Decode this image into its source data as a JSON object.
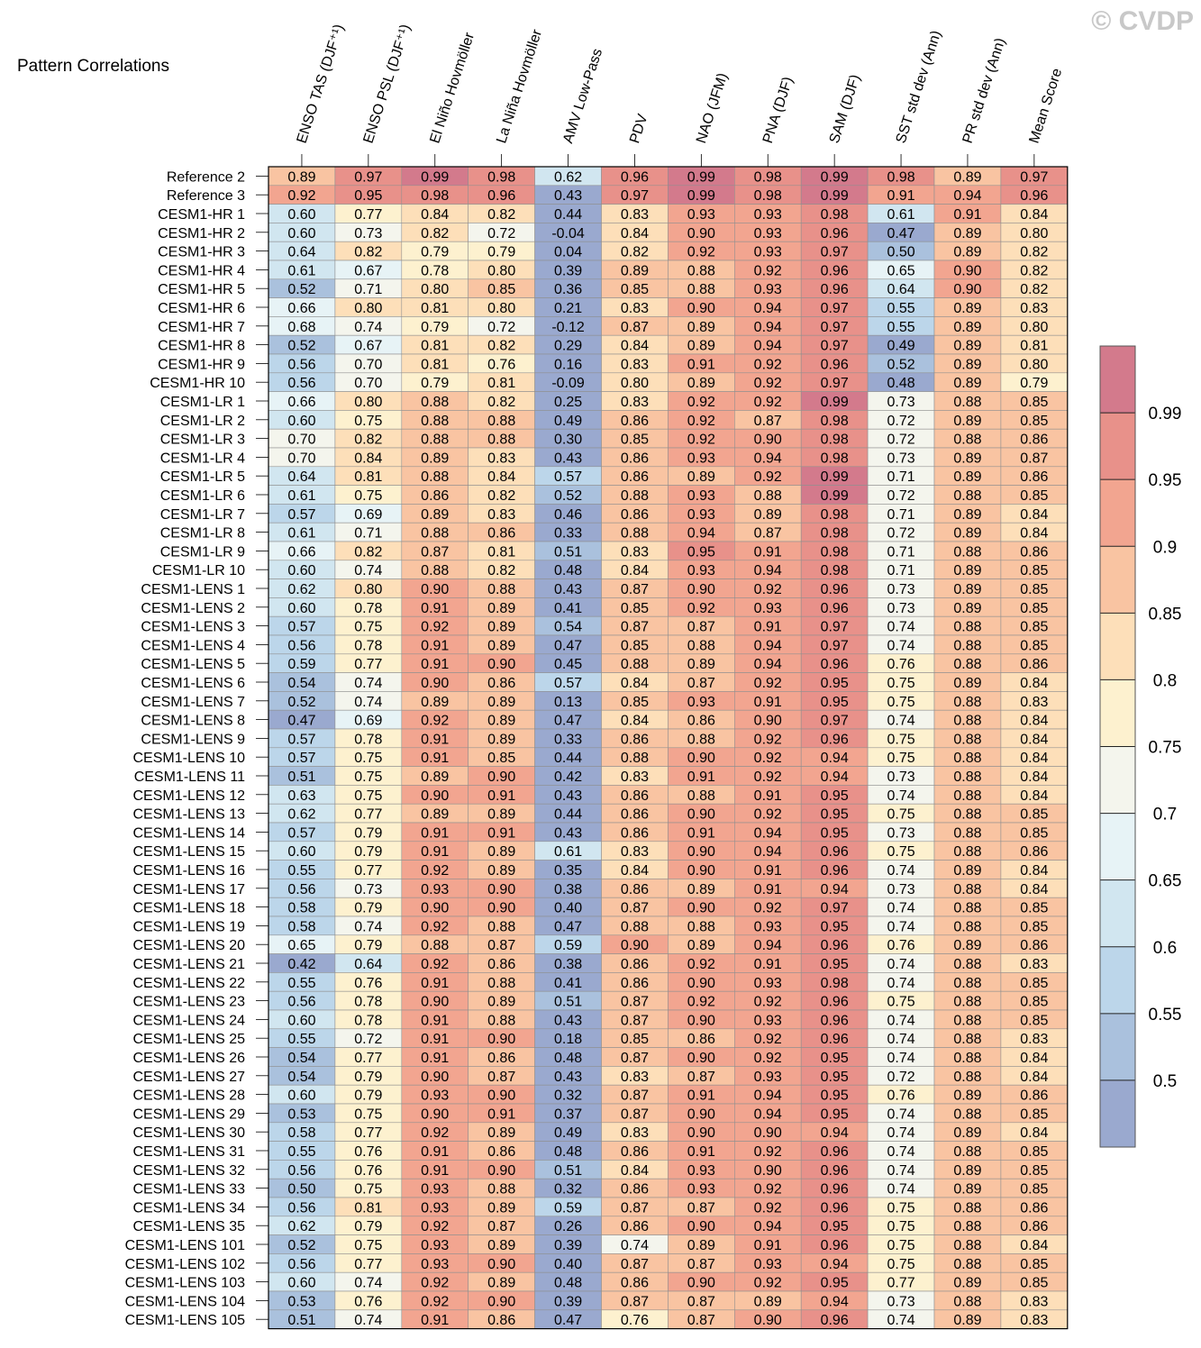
{
  "watermark": "© CVDP",
  "chart_data": {
    "type": "heatmap",
    "title": "Pattern Correlations",
    "columns": [
      "ENSO TAS (DJF⁺¹)",
      "ENSO PSL (DJF⁺¹)",
      "El Niño Hovmöller",
      "La Niña Hovmöller",
      "AMV Low-Pass",
      "PDV",
      "NAO (JFM)",
      "PNA (DJF)",
      "SAM (DJF)",
      "SST std dev (Ann)",
      "PR std dev (Ann)",
      "Mean Score"
    ],
    "rows": [
      "Reference 2",
      "Reference 3",
      "CESM1-HR 1",
      "CESM1-HR 2",
      "CESM1-HR 3",
      "CESM1-HR 4",
      "CESM1-HR 5",
      "CESM1-HR 6",
      "CESM1-HR 7",
      "CESM1-HR 8",
      "CESM1-HR 9",
      "CESM1-HR 10",
      "CESM1-LR 1",
      "CESM1-LR 2",
      "CESM1-LR 3",
      "CESM1-LR 4",
      "CESM1-LR 5",
      "CESM1-LR 6",
      "CESM1-LR 7",
      "CESM1-LR 8",
      "CESM1-LR 9",
      "CESM1-LR 10",
      "CESM1-LENS 1",
      "CESM1-LENS 2",
      "CESM1-LENS 3",
      "CESM1-LENS 4",
      "CESM1-LENS 5",
      "CESM1-LENS 6",
      "CESM1-LENS 7",
      "CESM1-LENS 8",
      "CESM1-LENS 9",
      "CESM1-LENS 10",
      "CESM1-LENS 11",
      "CESM1-LENS 12",
      "CESM1-LENS 13",
      "CESM1-LENS 14",
      "CESM1-LENS 15",
      "CESM1-LENS 16",
      "CESM1-LENS 17",
      "CESM1-LENS 18",
      "CESM1-LENS 19",
      "CESM1-LENS 20",
      "CESM1-LENS 21",
      "CESM1-LENS 22",
      "CESM1-LENS 23",
      "CESM1-LENS 24",
      "CESM1-LENS 25",
      "CESM1-LENS 26",
      "CESM1-LENS 27",
      "CESM1-LENS 28",
      "CESM1-LENS 29",
      "CESM1-LENS 30",
      "CESM1-LENS 31",
      "CESM1-LENS 32",
      "CESM1-LENS 33",
      "CESM1-LENS 34",
      "CESM1-LENS 35",
      "CESM1-LENS 101",
      "CESM1-LENS 102",
      "CESM1-LENS 103",
      "CESM1-LENS 104",
      "CESM1-LENS 105"
    ],
    "values": [
      [
        "0.89",
        "0.97",
        "0.99",
        "0.98",
        "0.62",
        "0.96",
        "0.99",
        "0.98",
        "0.99",
        "0.98",
        "0.89",
        "0.97"
      ],
      [
        "0.92",
        "0.95",
        "0.98",
        "0.96",
        "0.43",
        "0.97",
        "0.99",
        "0.98",
        "0.99",
        "0.91",
        "0.94",
        "0.96"
      ],
      [
        "0.60",
        "0.77",
        "0.84",
        "0.82",
        "0.44",
        "0.83",
        "0.93",
        "0.93",
        "0.98",
        "0.61",
        "0.91",
        "0.84"
      ],
      [
        "0.60",
        "0.73",
        "0.82",
        "0.72",
        "-0.04",
        "0.84",
        "0.90",
        "0.93",
        "0.96",
        "0.47",
        "0.89",
        "0.80"
      ],
      [
        "0.64",
        "0.82",
        "0.79",
        "0.79",
        "0.04",
        "0.82",
        "0.92",
        "0.93",
        "0.97",
        "0.50",
        "0.89",
        "0.82"
      ],
      [
        "0.61",
        "0.67",
        "0.78",
        "0.80",
        "0.39",
        "0.89",
        "0.88",
        "0.92",
        "0.96",
        "0.65",
        "0.90",
        "0.82"
      ],
      [
        "0.52",
        "0.71",
        "0.80",
        "0.85",
        "0.36",
        "0.85",
        "0.88",
        "0.93",
        "0.96",
        "0.64",
        "0.90",
        "0.82"
      ],
      [
        "0.66",
        "0.80",
        "0.81",
        "0.80",
        "0.21",
        "0.83",
        "0.90",
        "0.94",
        "0.97",
        "0.55",
        "0.89",
        "0.83"
      ],
      [
        "0.68",
        "0.74",
        "0.79",
        "0.72",
        "-0.12",
        "0.87",
        "0.89",
        "0.94",
        "0.97",
        "0.55",
        "0.89",
        "0.80"
      ],
      [
        "0.52",
        "0.67",
        "0.81",
        "0.82",
        "0.29",
        "0.84",
        "0.89",
        "0.94",
        "0.97",
        "0.49",
        "0.89",
        "0.81"
      ],
      [
        "0.56",
        "0.70",
        "0.81",
        "0.76",
        "0.16",
        "0.83",
        "0.91",
        "0.92",
        "0.96",
        "0.52",
        "0.89",
        "0.80"
      ],
      [
        "0.56",
        "0.70",
        "0.79",
        "0.81",
        "-0.09",
        "0.80",
        "0.89",
        "0.92",
        "0.97",
        "0.48",
        "0.89",
        "0.79"
      ],
      [
        "0.66",
        "0.80",
        "0.88",
        "0.82",
        "0.25",
        "0.83",
        "0.92",
        "0.92",
        "0.99",
        "0.73",
        "0.88",
        "0.85"
      ],
      [
        "0.60",
        "0.75",
        "0.88",
        "0.88",
        "0.49",
        "0.86",
        "0.92",
        "0.87",
        "0.98",
        "0.72",
        "0.89",
        "0.85"
      ],
      [
        "0.70",
        "0.82",
        "0.88",
        "0.88",
        "0.30",
        "0.85",
        "0.92",
        "0.90",
        "0.98",
        "0.72",
        "0.88",
        "0.86"
      ],
      [
        "0.70",
        "0.84",
        "0.89",
        "0.83",
        "0.43",
        "0.86",
        "0.93",
        "0.94",
        "0.98",
        "0.73",
        "0.89",
        "0.87"
      ],
      [
        "0.64",
        "0.81",
        "0.88",
        "0.84",
        "0.57",
        "0.86",
        "0.89",
        "0.92",
        "0.99",
        "0.71",
        "0.89",
        "0.86"
      ],
      [
        "0.61",
        "0.75",
        "0.86",
        "0.82",
        "0.52",
        "0.88",
        "0.93",
        "0.88",
        "0.99",
        "0.72",
        "0.88",
        "0.85"
      ],
      [
        "0.57",
        "0.69",
        "0.89",
        "0.83",
        "0.46",
        "0.86",
        "0.93",
        "0.89",
        "0.98",
        "0.71",
        "0.89",
        "0.84"
      ],
      [
        "0.61",
        "0.71",
        "0.88",
        "0.86",
        "0.33",
        "0.88",
        "0.94",
        "0.87",
        "0.98",
        "0.72",
        "0.89",
        "0.84"
      ],
      [
        "0.66",
        "0.82",
        "0.87",
        "0.81",
        "0.51",
        "0.83",
        "0.95",
        "0.91",
        "0.98",
        "0.71",
        "0.88",
        "0.86"
      ],
      [
        "0.60",
        "0.74",
        "0.88",
        "0.82",
        "0.48",
        "0.84",
        "0.93",
        "0.94",
        "0.98",
        "0.71",
        "0.89",
        "0.85"
      ],
      [
        "0.62",
        "0.80",
        "0.90",
        "0.88",
        "0.43",
        "0.87",
        "0.90",
        "0.92",
        "0.96",
        "0.73",
        "0.89",
        "0.85"
      ],
      [
        "0.60",
        "0.78",
        "0.91",
        "0.89",
        "0.41",
        "0.85",
        "0.92",
        "0.93",
        "0.96",
        "0.73",
        "0.89",
        "0.85"
      ],
      [
        "0.57",
        "0.75",
        "0.92",
        "0.89",
        "0.54",
        "0.87",
        "0.87",
        "0.91",
        "0.97",
        "0.74",
        "0.88",
        "0.85"
      ],
      [
        "0.56",
        "0.78",
        "0.91",
        "0.89",
        "0.47",
        "0.85",
        "0.88",
        "0.94",
        "0.97",
        "0.74",
        "0.88",
        "0.85"
      ],
      [
        "0.59",
        "0.77",
        "0.91",
        "0.90",
        "0.45",
        "0.88",
        "0.89",
        "0.94",
        "0.96",
        "0.76",
        "0.88",
        "0.86"
      ],
      [
        "0.54",
        "0.74",
        "0.90",
        "0.86",
        "0.57",
        "0.84",
        "0.87",
        "0.92",
        "0.95",
        "0.75",
        "0.89",
        "0.84"
      ],
      [
        "0.52",
        "0.74",
        "0.89",
        "0.89",
        "0.13",
        "0.85",
        "0.93",
        "0.91",
        "0.95",
        "0.75",
        "0.88",
        "0.83"
      ],
      [
        "0.47",
        "0.69",
        "0.92",
        "0.89",
        "0.47",
        "0.84",
        "0.86",
        "0.90",
        "0.97",
        "0.74",
        "0.88",
        "0.84"
      ],
      [
        "0.57",
        "0.78",
        "0.91",
        "0.89",
        "0.33",
        "0.86",
        "0.88",
        "0.92",
        "0.96",
        "0.75",
        "0.88",
        "0.84"
      ],
      [
        "0.57",
        "0.75",
        "0.91",
        "0.85",
        "0.44",
        "0.88",
        "0.90",
        "0.92",
        "0.94",
        "0.75",
        "0.88",
        "0.84"
      ],
      [
        "0.51",
        "0.75",
        "0.89",
        "0.90",
        "0.42",
        "0.83",
        "0.91",
        "0.92",
        "0.94",
        "0.73",
        "0.88",
        "0.84"
      ],
      [
        "0.63",
        "0.75",
        "0.90",
        "0.91",
        "0.43",
        "0.86",
        "0.88",
        "0.91",
        "0.95",
        "0.74",
        "0.88",
        "0.84"
      ],
      [
        "0.62",
        "0.77",
        "0.89",
        "0.89",
        "0.44",
        "0.86",
        "0.90",
        "0.92",
        "0.95",
        "0.75",
        "0.88",
        "0.85"
      ],
      [
        "0.57",
        "0.79",
        "0.91",
        "0.91",
        "0.43",
        "0.86",
        "0.91",
        "0.94",
        "0.95",
        "0.73",
        "0.88",
        "0.85"
      ],
      [
        "0.60",
        "0.79",
        "0.91",
        "0.89",
        "0.61",
        "0.83",
        "0.90",
        "0.94",
        "0.96",
        "0.75",
        "0.88",
        "0.86"
      ],
      [
        "0.55",
        "0.77",
        "0.92",
        "0.89",
        "0.35",
        "0.84",
        "0.90",
        "0.91",
        "0.96",
        "0.74",
        "0.89",
        "0.84"
      ],
      [
        "0.56",
        "0.73",
        "0.93",
        "0.90",
        "0.38",
        "0.86",
        "0.89",
        "0.91",
        "0.94",
        "0.73",
        "0.88",
        "0.84"
      ],
      [
        "0.58",
        "0.79",
        "0.90",
        "0.90",
        "0.40",
        "0.87",
        "0.90",
        "0.92",
        "0.97",
        "0.74",
        "0.88",
        "0.85"
      ],
      [
        "0.58",
        "0.74",
        "0.92",
        "0.88",
        "0.47",
        "0.88",
        "0.88",
        "0.93",
        "0.95",
        "0.74",
        "0.88",
        "0.85"
      ],
      [
        "0.65",
        "0.79",
        "0.88",
        "0.87",
        "0.59",
        "0.90",
        "0.89",
        "0.94",
        "0.96",
        "0.76",
        "0.89",
        "0.86"
      ],
      [
        "0.42",
        "0.64",
        "0.92",
        "0.86",
        "0.38",
        "0.86",
        "0.92",
        "0.91",
        "0.95",
        "0.74",
        "0.88",
        "0.83"
      ],
      [
        "0.55",
        "0.76",
        "0.91",
        "0.88",
        "0.41",
        "0.86",
        "0.90",
        "0.93",
        "0.98",
        "0.74",
        "0.88",
        "0.85"
      ],
      [
        "0.56",
        "0.78",
        "0.90",
        "0.89",
        "0.51",
        "0.87",
        "0.92",
        "0.92",
        "0.96",
        "0.75",
        "0.88",
        "0.85"
      ],
      [
        "0.60",
        "0.78",
        "0.91",
        "0.88",
        "0.43",
        "0.87",
        "0.90",
        "0.93",
        "0.96",
        "0.74",
        "0.88",
        "0.85"
      ],
      [
        "0.55",
        "0.72",
        "0.91",
        "0.90",
        "0.18",
        "0.85",
        "0.86",
        "0.92",
        "0.96",
        "0.74",
        "0.88",
        "0.83"
      ],
      [
        "0.54",
        "0.77",
        "0.91",
        "0.86",
        "0.48",
        "0.87",
        "0.90",
        "0.92",
        "0.95",
        "0.74",
        "0.88",
        "0.84"
      ],
      [
        "0.54",
        "0.79",
        "0.90",
        "0.87",
        "0.43",
        "0.83",
        "0.87",
        "0.93",
        "0.95",
        "0.72",
        "0.88",
        "0.84"
      ],
      [
        "0.60",
        "0.79",
        "0.93",
        "0.90",
        "0.32",
        "0.87",
        "0.91",
        "0.94",
        "0.95",
        "0.76",
        "0.89",
        "0.86"
      ],
      [
        "0.53",
        "0.75",
        "0.90",
        "0.91",
        "0.37",
        "0.87",
        "0.90",
        "0.94",
        "0.95",
        "0.74",
        "0.88",
        "0.85"
      ],
      [
        "0.58",
        "0.77",
        "0.92",
        "0.89",
        "0.49",
        "0.83",
        "0.90",
        "0.90",
        "0.94",
        "0.74",
        "0.89",
        "0.84"
      ],
      [
        "0.55",
        "0.76",
        "0.91",
        "0.86",
        "0.48",
        "0.86",
        "0.91",
        "0.92",
        "0.96",
        "0.74",
        "0.88",
        "0.85"
      ],
      [
        "0.56",
        "0.76",
        "0.91",
        "0.90",
        "0.51",
        "0.84",
        "0.93",
        "0.90",
        "0.96",
        "0.74",
        "0.89",
        "0.85"
      ],
      [
        "0.50",
        "0.75",
        "0.93",
        "0.88",
        "0.32",
        "0.86",
        "0.93",
        "0.92",
        "0.96",
        "0.74",
        "0.89",
        "0.85"
      ],
      [
        "0.56",
        "0.81",
        "0.93",
        "0.89",
        "0.59",
        "0.87",
        "0.87",
        "0.92",
        "0.96",
        "0.75",
        "0.88",
        "0.86"
      ],
      [
        "0.62",
        "0.79",
        "0.92",
        "0.87",
        "0.26",
        "0.86",
        "0.90",
        "0.94",
        "0.95",
        "0.75",
        "0.88",
        "0.86"
      ],
      [
        "0.52",
        "0.75",
        "0.93",
        "0.89",
        "0.39",
        "0.74",
        "0.89",
        "0.91",
        "0.96",
        "0.75",
        "0.88",
        "0.84"
      ],
      [
        "0.56",
        "0.77",
        "0.93",
        "0.90",
        "0.40",
        "0.87",
        "0.87",
        "0.93",
        "0.94",
        "0.75",
        "0.88",
        "0.85"
      ],
      [
        "0.60",
        "0.74",
        "0.92",
        "0.89",
        "0.48",
        "0.86",
        "0.90",
        "0.92",
        "0.95",
        "0.77",
        "0.89",
        "0.85"
      ],
      [
        "0.53",
        "0.76",
        "0.92",
        "0.90",
        "0.39",
        "0.87",
        "0.87",
        "0.89",
        "0.94",
        "0.73",
        "0.88",
        "0.83"
      ],
      [
        "0.51",
        "0.74",
        "0.91",
        "0.86",
        "0.47",
        "0.76",
        "0.87",
        "0.90",
        "0.96",
        "0.74",
        "0.89",
        "0.83"
      ]
    ],
    "colorbar": {
      "labels": [
        "0.99",
        "0.95",
        "0.9",
        "0.85",
        "0.8",
        "0.75",
        "0.7",
        "0.65",
        "0.6",
        "0.55",
        "0.5"
      ],
      "thresholds": [
        0.5,
        0.55,
        0.6,
        0.65,
        0.7,
        0.75,
        0.8,
        0.85,
        0.9,
        0.95,
        0.99
      ],
      "colors": [
        "#9aa9cf",
        "#aac1dd",
        "#bcd6ea",
        "#d1e6f0",
        "#e7f3f6",
        "#f4f5ed",
        "#fdf1cf",
        "#fddfb9",
        "#f9c4a2",
        "#f2a590",
        "#e8918a",
        "#d37a8c"
      ]
    }
  }
}
